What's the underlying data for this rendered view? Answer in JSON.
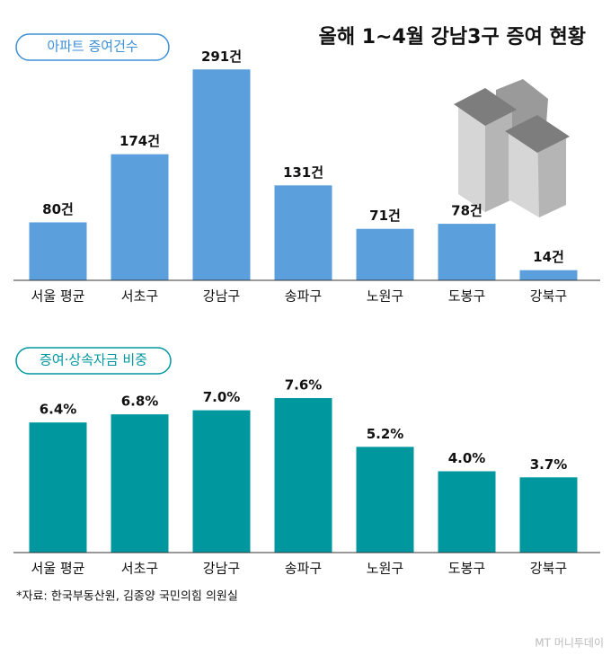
{
  "title": "올해 1~4월 강남3구 증여 현황",
  "source": "*자료: 한국부동산원, 김종양 국민의힘 의원실",
  "watermark": "MT 머니투데이",
  "chart_data": [
    {
      "type": "bar",
      "title": "아파트 증여건수",
      "categories": [
        "서울 평균",
        "서초구",
        "강남구",
        "송파구",
        "노원구",
        "도봉구",
        "강북구"
      ],
      "values": [
        80,
        174,
        291,
        131,
        71,
        78,
        14
      ],
      "value_labels": [
        "80건",
        "174건",
        "291건",
        "131건",
        "71건",
        "78건",
        "14건"
      ],
      "color": "#5b9fdc",
      "ylim": [
        0,
        300
      ]
    },
    {
      "type": "bar",
      "title": "증여·상속자금 비중",
      "categories": [
        "서울 평균",
        "서초구",
        "강남구",
        "송파구",
        "노원구",
        "도봉구",
        "강북구"
      ],
      "values": [
        6.4,
        6.8,
        7.0,
        7.6,
        5.2,
        4.0,
        3.7
      ],
      "value_labels": [
        "6.4%",
        "6.8%",
        "7.0%",
        "7.6%",
        "5.2%",
        "4.0%",
        "3.7%"
      ],
      "color": "#00979f",
      "ylim": [
        0,
        8
      ]
    }
  ]
}
